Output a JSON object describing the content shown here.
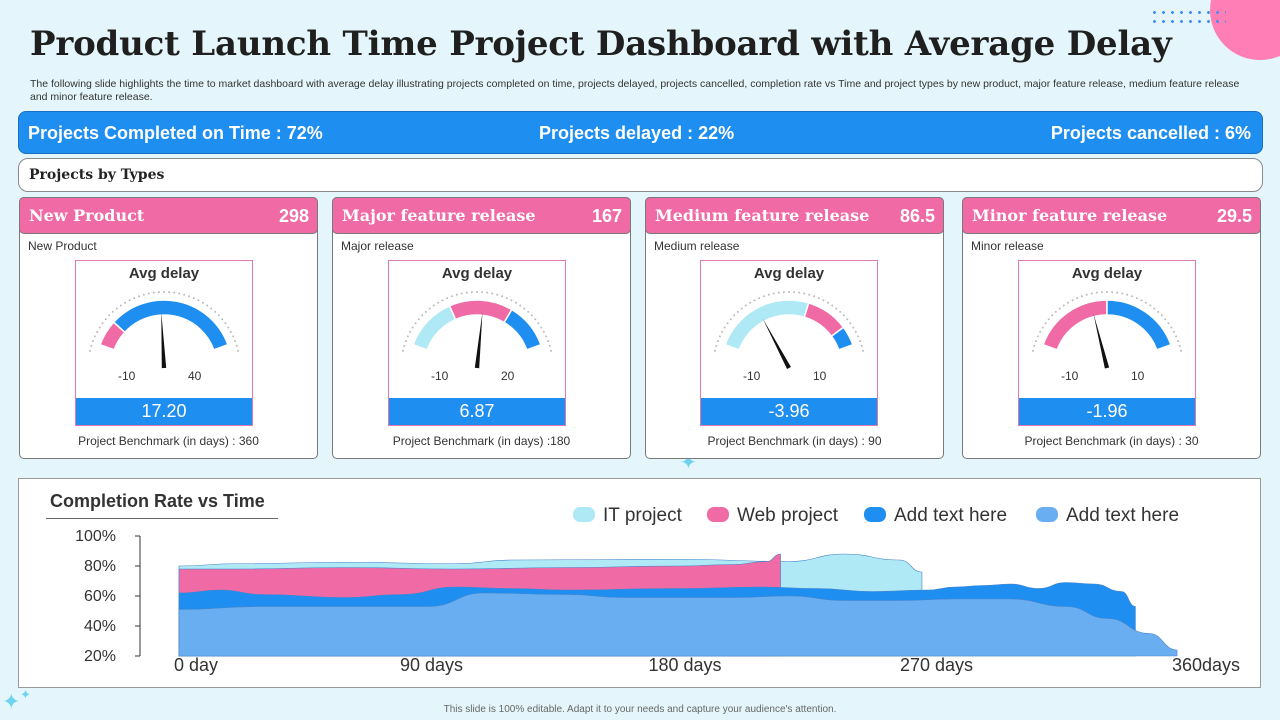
{
  "title": "Product Launch Time Project Dashboard with Average Delay",
  "subtitle": "The following slide highlights the time to market dashboard with average delay illustrating projects completed on time, projects delayed, projects cancelled, completion rate vs Time and project types by new product, major feature release, medium feature release and minor feature release.",
  "kpis": {
    "completed": "Projects Completed on Time :  72%",
    "delayed": "Projects delayed : 22%",
    "cancelled": "Projects cancelled : 6%"
  },
  "types_label": "Projects by Types",
  "cards": [
    {
      "title": "New Product",
      "value": "298",
      "sub": "New Product",
      "gauge_title": "Avg delay",
      "min": "-10",
      "max": "40",
      "avg": "17.20",
      "benchmark": "Project Benchmark  (in days) : 360",
      "needle_fraction": 0.48
    },
    {
      "title": "Major feature release",
      "value": "167",
      "sub": "Major release",
      "gauge_title": "Avg delay",
      "min": "-10",
      "max": "20",
      "avg": "6.87",
      "benchmark": "Project Benchmark  (in days) :180",
      "needle_fraction": 0.54
    },
    {
      "title": "Medium feature release",
      "value": "86.5",
      "sub": "Medium release",
      "gauge_title": "Avg delay",
      "min": "-10",
      "max": "10",
      "avg": "-3.96",
      "benchmark": "Project Benchmark  (in days) : 90",
      "needle_fraction": 0.3
    },
    {
      "title": "Minor feature release",
      "value": "29.5",
      "sub": "Minor release",
      "gauge_title": "Avg delay",
      "min": "-10",
      "max": "10",
      "avg": "-1.96",
      "benchmark": "Project Benchmark  (in days) : 30",
      "needle_fraction": 0.4
    }
  ],
  "colors": {
    "blue": "#1e8ef0",
    "pink": "#f06aa5",
    "light_cyan": "#aee9f5",
    "light_blue": "#6aaef2"
  },
  "chart_data": {
    "type": "area",
    "title": "Completion Rate vs Time",
    "xlabel": "",
    "ylabel": "",
    "x_ticks": [
      "0 day",
      "90 days",
      "180 days",
      "270 days",
      "360days"
    ],
    "y_ticks": [
      "100%",
      "80%",
      "60%",
      "40%",
      "20%"
    ],
    "ylim": [
      20,
      100
    ],
    "xlim": [
      0,
      360
    ],
    "series": [
      {
        "name": "IT project",
        "color": "#aee9f5",
        "points": [
          [
            0,
            80
          ],
          [
            20,
            81.5
          ],
          [
            60,
            82.5
          ],
          [
            100,
            81.5
          ],
          [
            120,
            84
          ],
          [
            180,
            84.5
          ],
          [
            220,
            83
          ],
          [
            240,
            88
          ],
          [
            260,
            84
          ],
          [
            268,
            76
          ]
        ]
      },
      {
        "name": "Web project",
        "color": "#f06aa5",
        "points": [
          [
            0,
            78
          ],
          [
            20,
            78
          ],
          [
            60,
            79
          ],
          [
            100,
            78
          ],
          [
            140,
            79
          ],
          [
            180,
            80
          ],
          [
            200,
            81
          ],
          [
            212,
            83
          ],
          [
            217,
            88
          ],
          [
            217,
            72
          ]
        ]
      },
      {
        "name": "Add text here",
        "color": "#1e8ef0",
        "points": [
          [
            0,
            62
          ],
          [
            15,
            64
          ],
          [
            30,
            61
          ],
          [
            60,
            59
          ],
          [
            80,
            61
          ],
          [
            100,
            66
          ],
          [
            120,
            65
          ],
          [
            140,
            64
          ],
          [
            180,
            65
          ],
          [
            210,
            66
          ],
          [
            230,
            65
          ],
          [
            250,
            63
          ],
          [
            270,
            64
          ],
          [
            280,
            66
          ],
          [
            290,
            67
          ],
          [
            300,
            68
          ],
          [
            310,
            65
          ],
          [
            320,
            69
          ],
          [
            330,
            68
          ],
          [
            340,
            63
          ],
          [
            345,
            53
          ]
        ]
      },
      {
        "name": "Add text here",
        "color": "#6aaef2",
        "points": [
          [
            0,
            51
          ],
          [
            30,
            53
          ],
          [
            60,
            53
          ],
          [
            90,
            53
          ],
          [
            110,
            62
          ],
          [
            140,
            61
          ],
          [
            160,
            59
          ],
          [
            180,
            59
          ],
          [
            200,
            59
          ],
          [
            220,
            60
          ],
          [
            240,
            57
          ],
          [
            260,
            57
          ],
          [
            280,
            58
          ],
          [
            300,
            58
          ],
          [
            320,
            53
          ],
          [
            335,
            45
          ],
          [
            350,
            35
          ],
          [
            360,
            24
          ]
        ]
      }
    ]
  },
  "footer": "This slide is 100% editable.  Adapt it to your needs and capture your audience's attention."
}
